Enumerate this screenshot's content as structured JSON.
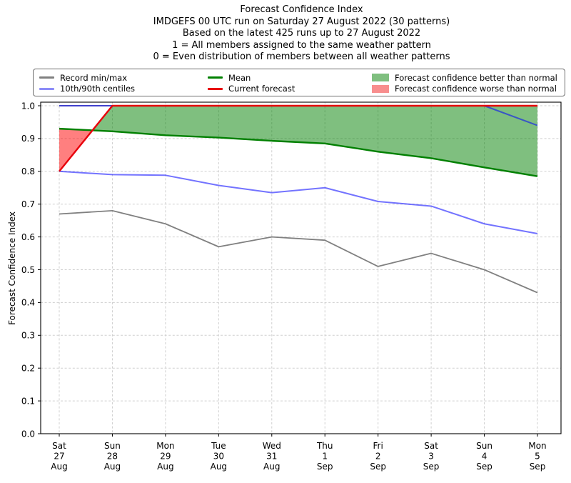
{
  "title_lines": [
    "Forecast Confidence Index",
    "IMDGEFS 00 UTC run on Saturday 27 August 2022 (30 patterns)",
    "Based on the latest 425 runs up to 27 August 2022",
    "1 = All members assigned to the same weather pattern",
    "0 = Even distribution of members between all weather patterns"
  ],
  "legend": {
    "items": [
      {
        "label": "Record min/max",
        "swatch": "line",
        "color": "#808080"
      },
      {
        "label": "10th/90th centiles",
        "swatch": "line",
        "color": "#8c8cf8"
      },
      {
        "label": "Mean",
        "swatch": "line",
        "color": "#008000"
      },
      {
        "label": "Current forecast",
        "swatch": "line",
        "color": "#e8000b"
      },
      {
        "label": "Forecast confidence better than normal",
        "swatch": "patch",
        "color": "#7fbf7f"
      },
      {
        "label": "Forecast confidence worse than normal",
        "swatch": "patch",
        "color": "#f88e8e"
      }
    ]
  },
  "chart_data": {
    "type": "line",
    "title": "Forecast Confidence Index",
    "ylabel": "Forecast Confidence Index",
    "ylim": [
      0.0,
      1.0
    ],
    "yticks": [
      "0.0",
      "0.1",
      "0.2",
      "0.3",
      "0.4",
      "0.5",
      "0.6",
      "0.7",
      "0.8",
      "0.9",
      "1.0"
    ],
    "grid": true,
    "legend_position": "top",
    "x_labels": [
      [
        "Sat",
        "27",
        "Aug"
      ],
      [
        "Sun",
        "28",
        "Aug"
      ],
      [
        "Mon",
        "29",
        "Aug"
      ],
      [
        "Tue",
        "30",
        "Aug"
      ],
      [
        "Wed",
        "31",
        "Aug"
      ],
      [
        "Thu",
        "1",
        "Sep"
      ],
      [
        "Fri",
        "2",
        "Sep"
      ],
      [
        "Sat",
        "3",
        "Sep"
      ],
      [
        "Sun",
        "4",
        "Sep"
      ],
      [
        "Mon",
        "5",
        "Sep"
      ]
    ],
    "series": [
      {
        "name": "Record max",
        "role": "record-max",
        "color": "#808080",
        "values": [
          1.0,
          1.0,
          1.0,
          1.0,
          1.0,
          1.0,
          1.0,
          1.0,
          1.0,
          1.0
        ]
      },
      {
        "name": "Record min",
        "role": "record-min",
        "color": "#808080",
        "values": [
          0.67,
          0.68,
          0.64,
          0.57,
          0.6,
          0.59,
          0.51,
          0.55,
          0.5,
          0.43
        ]
      },
      {
        "name": "Mean",
        "role": "mean",
        "color": "#008000",
        "values": [
          0.93,
          0.922,
          0.91,
          0.903,
          0.893,
          0.885,
          0.86,
          0.84,
          0.812,
          0.785
        ]
      },
      {
        "name": "10th centile",
        "role": "centile-10",
        "color": "rgba(0,0,255,0.55)",
        "values": [
          0.8,
          0.79,
          0.788,
          0.757,
          0.735,
          0.75,
          0.708,
          0.694,
          0.64,
          0.61
        ]
      },
      {
        "name": "90th centile",
        "role": "centile-90",
        "color": "rgba(0,0,255,0.55)",
        "values": [
          1.0,
          1.0,
          1.0,
          1.0,
          1.0,
          1.0,
          1.0,
          1.0,
          1.0,
          0.94
        ]
      },
      {
        "name": "Current forecast",
        "role": "current",
        "color": "#e8000b",
        "values": [
          0.8,
          1.0,
          1.0,
          1.0,
          1.0,
          1.0,
          1.0,
          1.0,
          1.0,
          1.0
        ]
      }
    ],
    "fill_between": {
      "upper_role": "current",
      "lower_role": "mean",
      "positive_label": "Forecast confidence better than normal",
      "negative_label": "Forecast confidence worse than normal",
      "positive_color": "rgba(0,128,0,0.5)",
      "negative_color": "rgba(255,0,0,0.5)"
    }
  }
}
